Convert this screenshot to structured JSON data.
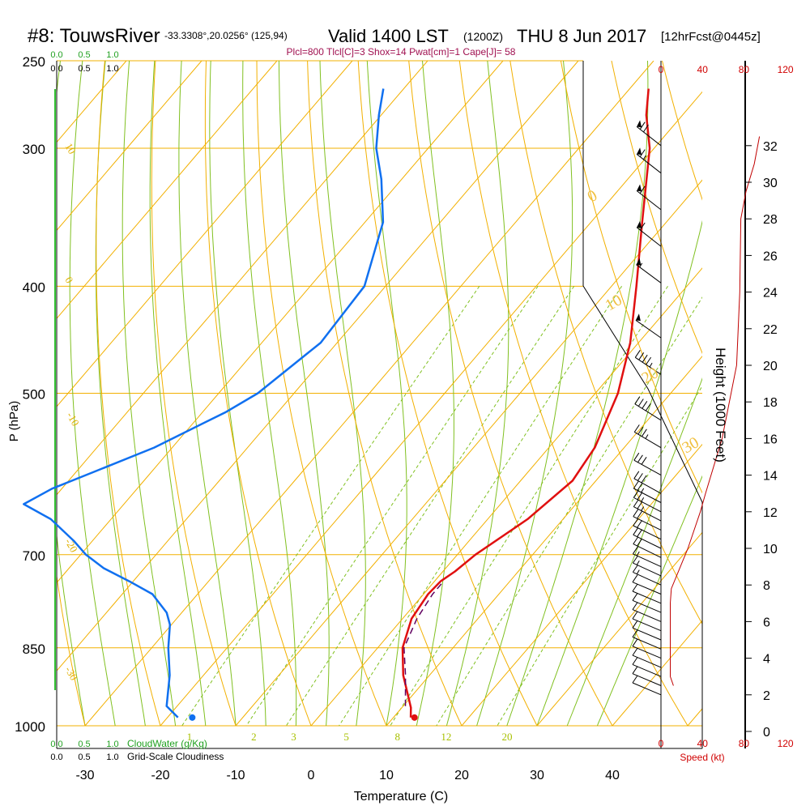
{
  "chart_data": {
    "type": "skew-t",
    "title": {
      "station": "#8: TouwsRiver",
      "coords": "-33.3308°,20.0256° (125,94)",
      "valid_main": "Valid 1400 LST",
      "valid_utc": "(1200Z)",
      "date": "THU 8 Jun 2017",
      "forecast": "[12hrFcst@0445z]"
    },
    "indices_text": "Plcl=800 Tlcl[C]=3 Shox=14 Pwat[cm]=1 Cape[J]= 58",
    "xlabel": "Temperature (C)",
    "ylabel": "P (hPa)",
    "y2label": "Height (1000 Feet)",
    "speed_label": "Speed (kt)",
    "cloud_water_label": "CloudWater (g/Kg)",
    "cloudiness_label": "Grid-Scale Cloudiness",
    "temperature_ticks": [
      "-30",
      "-20",
      "-10",
      "0",
      "10",
      "20",
      "30",
      "40"
    ],
    "temperature_tick_values": [
      -30,
      -20,
      -10,
      0,
      10,
      20,
      30,
      40
    ],
    "pressure_ticks": [
      "250",
      "300",
      "400",
      "500",
      "700",
      "850",
      "1000"
    ],
    "pressure_tick_values": [
      250,
      300,
      400,
      500,
      700,
      850,
      1000
    ],
    "height_ticks": [
      "0",
      "2",
      "4",
      "6",
      "8",
      "10",
      "12",
      "14",
      "16",
      "18",
      "20",
      "22",
      "24",
      "26",
      "28",
      "30",
      "32"
    ],
    "speed_ticks": [
      "0",
      "40",
      "80",
      "120"
    ],
    "cloud_scale_ticks": [
      "0.0",
      "0.5",
      "1.0"
    ],
    "dry_adiabat_labels": [
      "10",
      "0",
      "-10",
      "-20",
      "-30"
    ],
    "theta_labels": [
      "0",
      "10",
      "20",
      "30"
    ],
    "mixing_ratio_labels": [
      "1",
      "2",
      "3",
      "5",
      "8",
      "12",
      "20"
    ],
    "temperature_profile": {
      "name": "Temperature",
      "p": [
        983,
        963,
        900,
        850,
        800,
        760,
        740,
        725,
        700,
        650,
        600,
        560,
        500,
        450,
        400,
        350,
        300,
        280,
        265
      ],
      "t": [
        12.3,
        11.2,
        6.5,
        3.3,
        1.2,
        0.6,
        0.8,
        1.6,
        2.4,
        5.3,
        6.9,
        6.1,
        3.0,
        -1.1,
        -6.7,
        -13.2,
        -20.6,
        -24.8,
        -27.5
      ]
    },
    "dewpoint_profile": {
      "name": "Dewpoint",
      "p": [
        983,
        960,
        900,
        850,
        810,
        790,
        760,
        740,
        720,
        700,
        680,
        650,
        630,
        610,
        590,
        560,
        520,
        500,
        450,
        400,
        350,
        320,
        300,
        280,
        265
      ],
      "t": [
        -18.6,
        -21.4,
        -24.5,
        -27.8,
        -30.2,
        -32.0,
        -36.0,
        -40.5,
        -45.4,
        -49.3,
        -52.5,
        -58.0,
        -63.3,
        -61.3,
        -57.8,
        -52.4,
        -46.9,
        -44.8,
        -42.2,
        -42.8,
        -47.6,
        -52.7,
        -56.9,
        -60.3,
        -62.7
      ]
    },
    "parcel_trace": {
      "name": "Parcel",
      "p": [
        960,
        900,
        850,
        800,
        760,
        740
      ],
      "t": [
        10.3,
        6.8,
        3.5,
        1.9,
        1.2,
        1.2
      ]
    },
    "surface_temperature_dot": {
      "p": 983,
      "t": 12.8
    },
    "surface_dewpoint_dot": {
      "p": 983,
      "t": -16.7
    },
    "height_profile_label": "Height (1000 Feet)",
    "wind_speed_profile": {
      "height_kft": [
        2.5,
        3.0,
        5.0,
        7.0,
        7.8,
        10.0,
        12.0,
        13.0,
        16.0,
        20.0,
        24.0,
        28.0,
        29.5,
        31.0,
        32.5
      ],
      "speed_kt": [
        12,
        9,
        9,
        9,
        10,
        26,
        38,
        43,
        59,
        73,
        76,
        77,
        82,
        90,
        95
      ]
    },
    "wind_barbs": {
      "height_kft": [
        2.0,
        2.5,
        3.0,
        3.5,
        4.0,
        4.5,
        5.0,
        5.5,
        6.0,
        6.5,
        7.0,
        7.5,
        8.0,
        8.5,
        9.0,
        9.5,
        10.0,
        10.5,
        11.0,
        11.5,
        12.0,
        12.5,
        13.0,
        14.0,
        15.5,
        17.0,
        19.5,
        21.5,
        24.5,
        26.5,
        28.5,
        30.5,
        32.0
      ],
      "speed_kt": [
        10,
        10,
        10,
        10,
        10,
        10,
        10,
        10,
        10,
        10,
        10,
        10,
        15,
        15,
        15,
        20,
        20,
        20,
        20,
        25,
        25,
        25,
        30,
        30,
        35,
        40,
        45,
        50,
        55,
        60,
        60,
        65,
        70
      ]
    }
  }
}
